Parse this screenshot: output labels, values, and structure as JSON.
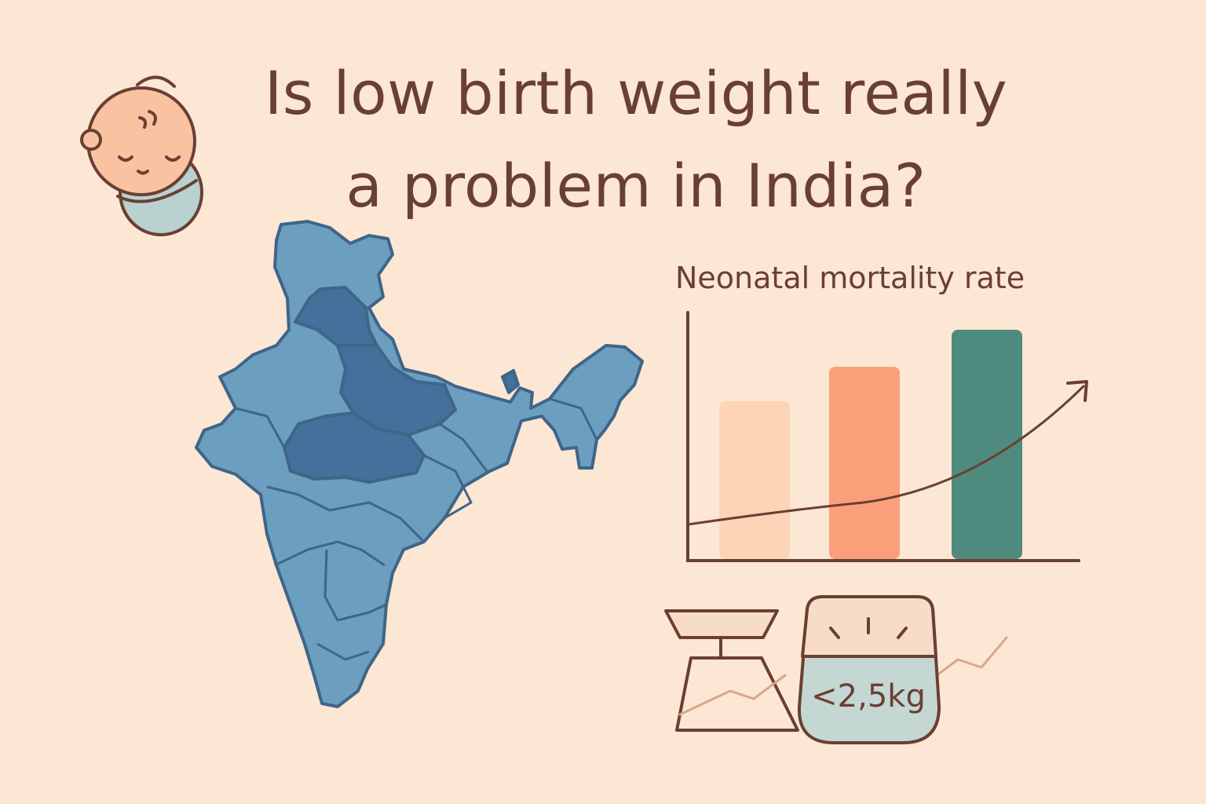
{
  "title": {
    "line1": "Is low birth weight really",
    "line2": "a problem in India?"
  },
  "icons": {
    "baby": "sleeping-baby-icon",
    "map": "india-map-icon",
    "scale": "weighing-scale-icon"
  },
  "chart_data": {
    "type": "bar",
    "title": "Neonatal mortality rate",
    "categories": [
      "",
      "",
      ""
    ],
    "values": [
      0.64,
      0.78,
      0.93
    ],
    "ylim": [
      0,
      1
    ],
    "xlabel": "",
    "ylabel": "",
    "bar_colors": [
      "#fdd5b6",
      "#f9a07a",
      "#4f8a7f"
    ],
    "trend": "increasing"
  },
  "scale_label": "<2,5kg",
  "colors": {
    "background": "#fce6d4",
    "text": "#6a3f33",
    "map_light": "#6c9ec0",
    "map_dark": "#44709c"
  }
}
